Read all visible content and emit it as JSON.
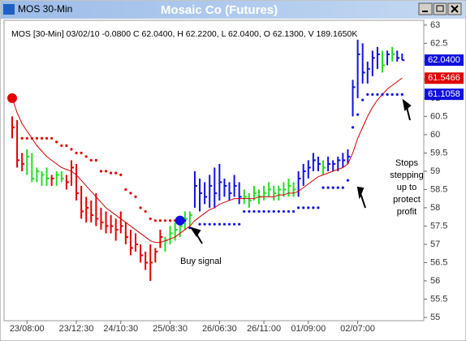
{
  "window_title": "MOS 30-Min",
  "chart_data": {
    "type": "ohlc",
    "title": "Mosaic Co (Futures)",
    "info": "MOS [30-Min] 03/02/10 -0.0800 C 62.0400, H 62.2200, L 62.0400, O 62.1300, V 189.1650K",
    "categories": [
      null,
      null,
      null,
      "23/08:00",
      null,
      null,
      null,
      null,
      null,
      null,
      null,
      null,
      null,
      "23/12:30",
      null,
      null,
      null,
      null,
      null,
      null,
      null,
      null,
      "24/10:30",
      null,
      null,
      null,
      null,
      null,
      null,
      null,
      null,
      null,
      "25/08:30",
      null,
      null,
      null,
      null,
      null,
      null,
      null,
      null,
      null,
      "26/06:30",
      null,
      null,
      null,
      null,
      null,
      null,
      null,
      null,
      "26/11:00",
      null,
      null,
      null,
      null,
      null,
      null,
      null,
      null,
      "01/09:00",
      null,
      null,
      null,
      null,
      null,
      null,
      null,
      null,
      null,
      "02/07:00",
      null,
      null,
      null,
      null,
      null,
      null,
      null,
      null,
      null
    ],
    "high": [
      60.5,
      60.4,
      59.5,
      59.6,
      59.5,
      59.1,
      59.0,
      59.1,
      58.9,
      59.0,
      59.0,
      58.9,
      59.3,
      59.2,
      58.6,
      58.3,
      58.2,
      58.4,
      58.0,
      57.9,
      57.8,
      57.7,
      57.9,
      57.6,
      57.4,
      57.3,
      57.0,
      56.8,
      57.0,
      56.9,
      57.4,
      57.2,
      57.5,
      57.6,
      57.7,
      57.9,
      57.9,
      59.0,
      58.8,
      58.7,
      58.9,
      59.1,
      59.2,
      58.8,
      58.7,
      58.9,
      58.7,
      58.5,
      58.4,
      58.6,
      58.5,
      58.6,
      58.7,
      58.6,
      58.6,
      58.7,
      58.8,
      58.7,
      59.0,
      59.2,
      59.3,
      59.5,
      59.4,
      59.3,
      59.4,
      59.3,
      59.4,
      59.5,
      59.6,
      61.5,
      62.6,
      62.5,
      62.0,
      62.3,
      62.4,
      62.3,
      62.3,
      62.4,
      62.3,
      62.22
    ],
    "low": [
      59.9,
      59.1,
      59.0,
      58.9,
      58.7,
      58.7,
      58.6,
      58.6,
      58.6,
      58.6,
      58.7,
      58.5,
      58.6,
      58.2,
      57.7,
      57.6,
      57.6,
      57.5,
      57.4,
      57.3,
      57.3,
      57.1,
      57.3,
      57.0,
      56.7,
      56.8,
      56.5,
      56.3,
      56.0,
      56.5,
      56.9,
      56.8,
      57.0,
      57.1,
      57.2,
      57.4,
      57.5,
      58.0,
      57.9,
      58.1,
      58.0,
      58.0,
      58.2,
      58.3,
      58.2,
      58.3,
      58.1,
      58.1,
      58.0,
      58.2,
      58.1,
      58.2,
      58.3,
      58.2,
      58.2,
      58.3,
      58.3,
      58.3,
      58.3,
      58.6,
      58.8,
      59.0,
      59.0,
      58.9,
      59.0,
      59.0,
      59.0,
      59.1,
      59.2,
      60.5,
      61.0,
      61.4,
      61.4,
      61.6,
      61.8,
      61.7,
      61.9,
      62.0,
      62.0,
      62.04
    ],
    "close": [
      60.2,
      59.3,
      59.2,
      59.4,
      58.8,
      59.0,
      58.9,
      58.8,
      58.8,
      58.9,
      58.8,
      58.7,
      59.1,
      58.4,
      57.9,
      58.0,
      57.8,
      57.7,
      57.6,
      57.5,
      57.5,
      57.4,
      57.5,
      57.2,
      56.9,
      57.0,
      56.7,
      56.5,
      56.5,
      56.8,
      57.2,
      57.1,
      57.3,
      57.4,
      57.5,
      57.7,
      57.8,
      58.6,
      58.4,
      58.3,
      58.6,
      58.4,
      58.7,
      58.6,
      58.4,
      58.6,
      58.3,
      58.3,
      58.2,
      58.4,
      58.3,
      58.4,
      58.5,
      58.4,
      58.5,
      58.5,
      58.6,
      58.5,
      58.8,
      59.0,
      59.1,
      59.3,
      59.2,
      59.1,
      59.2,
      59.2,
      59.3,
      59.3,
      59.4,
      61.3,
      62.2,
      61.7,
      61.8,
      62.1,
      62.2,
      61.9,
      62.2,
      62.2,
      62.1,
      62.04
    ],
    "bar_colors": [
      "#e00000",
      "#e00000",
      "#e00000",
      "#22dd22",
      "#22dd22",
      "#22dd22",
      "#22dd22",
      "#22dd22",
      "#e00000",
      "#22dd22",
      "#22dd22",
      "#e00000",
      "#e00000",
      "#e00000",
      "#e00000",
      "#e00000",
      "#e00000",
      "#e00000",
      "#e00000",
      "#e00000",
      "#e00000",
      "#e00000",
      "#e00000",
      "#e00000",
      "#e00000",
      "#e00000",
      "#e00000",
      "#e00000",
      "#e00000",
      "#e00000",
      "#e00000",
      "#22dd22",
      "#22dd22",
      "#22dd22",
      "#22dd22",
      "#22dd22",
      "#22dd22",
      "#1010e0",
      "#1010e0",
      "#1010e0",
      "#1010e0",
      "#1010e0",
      "#1010e0",
      "#1010e0",
      "#1010e0",
      "#1010e0",
      "#1010e0",
      "#22dd22",
      "#22dd22",
      "#22dd22",
      "#22dd22",
      "#22dd22",
      "#22dd22",
      "#22dd22",
      "#22dd22",
      "#22dd22",
      "#22dd22",
      "#22dd22",
      "#1010e0",
      "#1010e0",
      "#1010e0",
      "#1010e0",
      "#1010e0",
      "#22dd22",
      "#1010e0",
      "#1010e0",
      "#1010e0",
      "#1010e0",
      "#1010e0",
      "#1010e0",
      "#1010e0",
      "#1010e0",
      "#1010e0",
      "#1010e0",
      "#1010e0",
      "#22dd22",
      "#1010e0",
      "#22dd22",
      "#1010e0",
      "#1010e0"
    ],
    "sar": [
      61.0,
      null,
      59.9,
      59.9,
      59.9,
      59.9,
      59.9,
      59.9,
      59.9,
      59.8,
      59.7,
      59.7,
      59.6,
      59.5,
      59.5,
      59.4,
      59.3,
      59.3,
      59.0,
      59.0,
      58.95,
      58.95,
      58.9,
      58.5,
      58.4,
      58.3,
      58.0,
      57.9,
      57.7,
      57.65,
      57.65,
      57.65,
      57.65,
      57.65,
      57.65,
      57.65,
      57.45,
      null,
      57.55,
      57.55,
      57.55,
      57.55,
      57.55,
      57.55,
      57.55,
      57.55,
      57.55,
      57.9,
      57.9,
      57.9,
      57.9,
      57.9,
      57.9,
      57.9,
      57.9,
      57.9,
      57.9,
      57.9,
      58.0,
      58.0,
      58.0,
      58.0,
      58.0,
      58.55,
      58.55,
      58.55,
      58.55,
      58.55,
      58.75,
      60.2,
      60.55,
      60.95,
      61.1,
      61.1,
      61.1,
      61.1,
      61.1,
      61.1,
      61.1,
      61.1
    ],
    "sar_up_color": "#e00000",
    "sar_down_color": "#1010e0",
    "ma": [
      61.0,
      60.6,
      60.3,
      60.1,
      59.9,
      59.7,
      59.55,
      59.4,
      59.3,
      59.2,
      59.1,
      59.05,
      59.0,
      58.9,
      58.75,
      58.6,
      58.45,
      58.3,
      58.15,
      58.0,
      57.9,
      57.8,
      57.7,
      57.6,
      57.5,
      57.4,
      57.3,
      57.2,
      57.1,
      57.05,
      57.05,
      57.1,
      57.15,
      57.2,
      57.3,
      57.4,
      57.5,
      57.65,
      57.75,
      57.85,
      57.95,
      58.0,
      58.1,
      58.15,
      58.2,
      58.25,
      58.25,
      58.25,
      58.25,
      58.25,
      58.3,
      58.3,
      58.3,
      58.3,
      58.35,
      58.35,
      58.4,
      58.4,
      58.45,
      58.55,
      58.65,
      58.75,
      58.85,
      58.9,
      58.95,
      59.0,
      59.05,
      59.1,
      59.2,
      59.5,
      59.9,
      60.2,
      60.5,
      60.75,
      60.95,
      61.1,
      61.25,
      61.35,
      61.45,
      61.55
    ],
    "ma_color": "#d00000",
    "price_tags": [
      {
        "value": 62.04,
        "label": "62.0400",
        "color": "#1010e0"
      },
      {
        "value": 61.5466,
        "label": "61.5466",
        "color": "#e00000"
      },
      {
        "value": 61.1058,
        "label": "61.1058",
        "color": "#1010e0"
      }
    ],
    "ylim": [
      54.91,
      63.13
    ],
    "yticks": [
      55,
      55.5,
      56,
      56.5,
      57,
      57.5,
      58,
      58.5,
      59,
      59.5,
      60,
      60.5,
      61,
      61.5,
      62,
      62.5,
      63
    ],
    "annotations": [
      "Buy signal",
      [
        "Stops",
        "stepping",
        "up to",
        "protect",
        "profit"
      ]
    ]
  }
}
